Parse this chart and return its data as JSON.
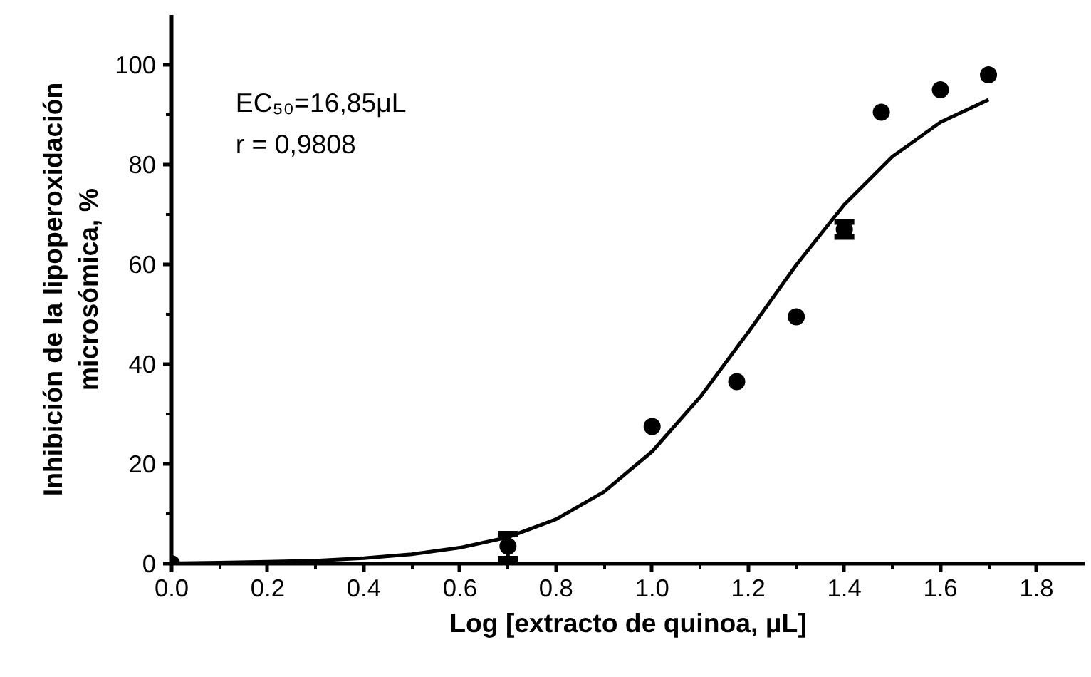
{
  "chart_data": {
    "type": "scatter",
    "xlabel": "Log [extracto de quinoa, μL]",
    "ylabel": "Inhibición de la lipoperoxidación\nmicrosómica, %",
    "annotations": [
      "EC₅₀=16,85μL",
      "r = 0,9808"
    ],
    "xlim": [
      0,
      1.9
    ],
    "ylim": [
      0,
      110
    ],
    "xticks": [
      {
        "value": 0,
        "label": "0.0"
      },
      {
        "value": 0.1,
        "label": null
      },
      {
        "value": 0.2,
        "label": "0.2"
      },
      {
        "value": 0.3,
        "label": null
      },
      {
        "value": 0.4,
        "label": "0.4"
      },
      {
        "value": 0.5,
        "label": null
      },
      {
        "value": 0.6,
        "label": "0.6"
      },
      {
        "value": 0.7,
        "label": null
      },
      {
        "value": 0.8,
        "label": "0.8"
      },
      {
        "value": 0.9,
        "label": null
      },
      {
        "value": 1.0,
        "label": "1.0"
      },
      {
        "value": 1.1,
        "label": null
      },
      {
        "value": 1.2,
        "label": "1.2"
      },
      {
        "value": 1.3,
        "label": null
      },
      {
        "value": 1.4,
        "label": "1.4"
      },
      {
        "value": 1.5,
        "label": null
      },
      {
        "value": 1.6,
        "label": "1.6"
      },
      {
        "value": 1.7,
        "label": null
      },
      {
        "value": 1.8,
        "label": "1.8"
      }
    ],
    "yticks": [
      0,
      {
        "value": 10,
        "label": null
      },
      20,
      {
        "value": 30,
        "label": null
      },
      40,
      {
        "value": 50,
        "label": null
      },
      60,
      {
        "value": 70,
        "label": null
      },
      80,
      {
        "value": 90,
        "label": null
      },
      100
    ],
    "grid": false,
    "marker": "circle",
    "series": [
      {
        "color": "#000000",
        "x": [
          0,
          0.7,
          1.0,
          1.176,
          1.3,
          1.4,
          1.477,
          1.6,
          1.7
        ],
        "values": [
          0,
          3.5,
          27.5,
          36.5,
          49.5,
          67,
          90.5,
          95,
          98
        ],
        "errors": [
          null,
          2.5,
          null,
          null,
          null,
          1.5,
          null,
          null,
          null
        ]
      },
      {
        "type": "line",
        "color": "#000000",
        "marker": "none",
        "line_style": "solid",
        "x": [
          0,
          0.1,
          0.2,
          0.3,
          0.4,
          0.5,
          0.6,
          0.7,
          0.8,
          0.9,
          1.0,
          1.1,
          1.2,
          1.3,
          1.4,
          1.5,
          1.6,
          1.7
        ],
        "values": [
          0.1,
          0.2,
          0.4,
          0.6,
          1.1,
          1.9,
          3.2,
          5.3,
          8.9,
          14.4,
          22.5,
          33.4,
          46.4,
          59.9,
          72.0,
          81.6,
          88.5,
          93.0
        ]
      }
    ]
  }
}
